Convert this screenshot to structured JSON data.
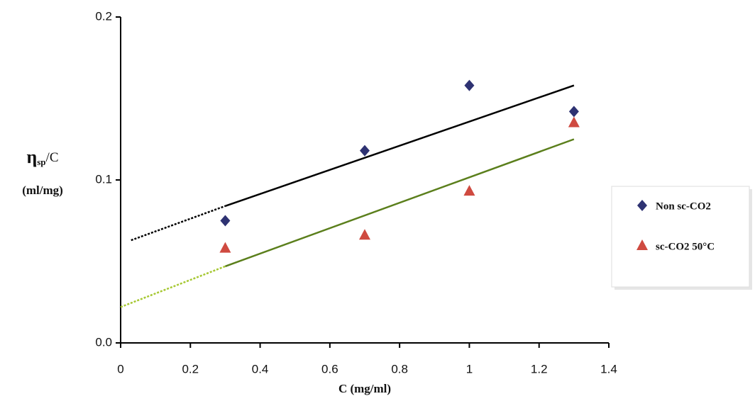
{
  "chart_data": {
    "type": "scatter",
    "ylabel": {
      "main": "η",
      "sub": "sp",
      "tail": "/C",
      "unit": "(ml/mg)"
    },
    "xlabel": "C (mg/ml)",
    "xlim": [
      0,
      1.4
    ],
    "xticks": [
      0,
      0.2,
      0.4,
      0.6,
      0.8,
      1,
      1.2,
      1.4
    ],
    "ylim": [
      0,
      0.2
    ],
    "yticks": [
      {
        "value": 0,
        "label": "0.0"
      },
      0.1,
      0.2
    ],
    "legend": "right",
    "series": [
      {
        "name": "Non sc-CO2",
        "color": "#2e3272",
        "marker": "diamond",
        "x": [
          0.3,
          0.7,
          1.0,
          1.3
        ],
        "values": [
          0.075,
          0.118,
          0.158,
          0.142
        ]
      },
      {
        "name": "sc-CO2 50°C",
        "color": "#cf4a40",
        "marker": "triangle",
        "x": [
          0.3,
          0.7,
          1.0,
          1.3
        ],
        "values": [
          0.058,
          0.066,
          0.093,
          0.135
        ]
      }
    ],
    "lines": [
      {
        "color": "#000000",
        "style": "solid",
        "x": [
          0.3,
          1.3
        ],
        "values": [
          0.084,
          0.158
        ]
      },
      {
        "color": "#000000",
        "style": "dotted",
        "x": [
          0.03,
          0.3
        ],
        "values": [
          0.063,
          0.084
        ]
      },
      {
        "color": "#5b7f1c",
        "style": "solid",
        "x": [
          0.3,
          1.3
        ],
        "values": [
          0.047,
          0.125
        ]
      },
      {
        "color": "#a6c832",
        "style": "dotted",
        "x": [
          0,
          0.3
        ],
        "values": [
          0.022,
          0.047
        ]
      }
    ]
  }
}
